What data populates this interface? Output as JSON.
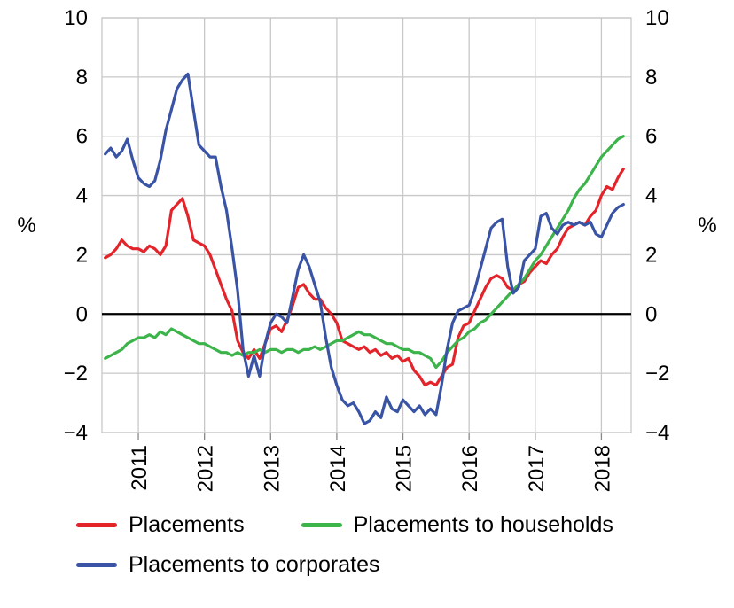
{
  "chart_data": {
    "type": "line",
    "title": "",
    "ylabel_left": "%",
    "ylabel_right": "%",
    "x_ticks": [
      "2011",
      "2012",
      "2013",
      "2014",
      "2015",
      "2016",
      "2017",
      "2018"
    ],
    "y_ticks": [
      10,
      8,
      6,
      4,
      2,
      0,
      -2,
      -4
    ],
    "xlim": [
      2010.45,
      2018.45
    ],
    "ylim": [
      -4,
      10
    ],
    "grid": true,
    "zero_line": true,
    "legend_position": "bottom",
    "x_start": 2010.5,
    "x_step_years": 0.0833333,
    "colors": {
      "grid": "#c8c8c8",
      "zero_line": "#000000",
      "axis_text": "#000000"
    },
    "series": [
      {
        "name": "Placements",
        "color": "#e3242b",
        "values": [
          1.9,
          2.0,
          2.2,
          2.5,
          2.3,
          2.2,
          2.2,
          2.1,
          2.3,
          2.2,
          2.0,
          2.3,
          3.5,
          3.7,
          3.9,
          3.3,
          2.5,
          2.4,
          2.3,
          2.0,
          1.5,
          1.0,
          0.5,
          0.1,
          -0.9,
          -1.3,
          -1.5,
          -1.2,
          -1.5,
          -1.0,
          -0.5,
          -0.4,
          -0.6,
          -0.2,
          0.3,
          0.9,
          1.0,
          0.7,
          0.5,
          0.5,
          0.2,
          0.0,
          -0.3,
          -0.9,
          -1.0,
          -1.1,
          -1.2,
          -1.1,
          -1.3,
          -1.2,
          -1.4,
          -1.3,
          -1.5,
          -1.4,
          -1.6,
          -1.5,
          -1.9,
          -2.1,
          -2.4,
          -2.3,
          -2.4,
          -2.1,
          -1.8,
          -1.7,
          -0.8,
          -0.4,
          -0.3,
          0.1,
          0.5,
          0.9,
          1.2,
          1.3,
          1.2,
          0.9,
          0.8,
          1.0,
          1.1,
          1.4,
          1.6,
          1.8,
          1.7,
          2.0,
          2.2,
          2.6,
          2.9,
          3.0,
          3.1,
          3.0,
          3.3,
          3.5,
          4.0,
          4.3,
          4.2,
          4.6,
          4.9
        ]
      },
      {
        "name": "Placements to households",
        "color": "#3cb44b",
        "values": [
          -1.5,
          -1.4,
          -1.3,
          -1.2,
          -1.0,
          -0.9,
          -0.8,
          -0.8,
          -0.7,
          -0.8,
          -0.6,
          -0.7,
          -0.5,
          -0.6,
          -0.7,
          -0.8,
          -0.9,
          -1.0,
          -1.0,
          -1.1,
          -1.2,
          -1.3,
          -1.3,
          -1.4,
          -1.3,
          -1.4,
          -1.3,
          -1.3,
          -1.2,
          -1.3,
          -1.2,
          -1.2,
          -1.3,
          -1.2,
          -1.2,
          -1.3,
          -1.2,
          -1.2,
          -1.1,
          -1.2,
          -1.1,
          -1.0,
          -0.9,
          -0.9,
          -0.8,
          -0.7,
          -0.6,
          -0.7,
          -0.7,
          -0.8,
          -0.9,
          -1.0,
          -1.0,
          -1.1,
          -1.2,
          -1.2,
          -1.3,
          -1.3,
          -1.4,
          -1.5,
          -1.8,
          -1.6,
          -1.3,
          -1.1,
          -0.9,
          -0.8,
          -0.6,
          -0.5,
          -0.3,
          -0.2,
          0.0,
          0.2,
          0.4,
          0.6,
          0.8,
          1.0,
          1.2,
          1.5,
          1.8,
          2.0,
          2.3,
          2.6,
          2.9,
          3.2,
          3.5,
          3.9,
          4.2,
          4.4,
          4.7,
          5.0,
          5.3,
          5.5,
          5.7,
          5.9,
          6.0
        ]
      },
      {
        "name": "Placements to corporates",
        "color": "#3953a5",
        "values": [
          5.4,
          5.6,
          5.3,
          5.5,
          5.9,
          5.2,
          4.6,
          4.4,
          4.3,
          4.5,
          5.2,
          6.2,
          6.9,
          7.6,
          7.9,
          8.1,
          6.9,
          5.7,
          5.5,
          5.3,
          5.3,
          4.3,
          3.5,
          2.2,
          0.8,
          -1.2,
          -2.1,
          -1.4,
          -2.1,
          -1.0,
          -0.3,
          0.0,
          -0.1,
          -0.3,
          0.6,
          1.5,
          2.0,
          1.6,
          1.0,
          0.4,
          -0.8,
          -1.8,
          -2.4,
          -2.9,
          -3.1,
          -3.0,
          -3.3,
          -3.7,
          -3.6,
          -3.3,
          -3.5,
          -2.8,
          -3.2,
          -3.3,
          -2.9,
          -3.1,
          -3.3,
          -3.1,
          -3.4,
          -3.2,
          -3.4,
          -2.4,
          -1.2,
          -0.3,
          0.1,
          0.2,
          0.3,
          0.8,
          1.5,
          2.2,
          2.9,
          3.1,
          3.2,
          1.6,
          0.7,
          0.9,
          1.8,
          2.0,
          2.2,
          3.3,
          3.4,
          2.9,
          2.7,
          3.0,
          3.1,
          3.0,
          3.1,
          3.0,
          3.1,
          2.7,
          2.6,
          3.0,
          3.4,
          3.6,
          3.7
        ]
      }
    ]
  }
}
